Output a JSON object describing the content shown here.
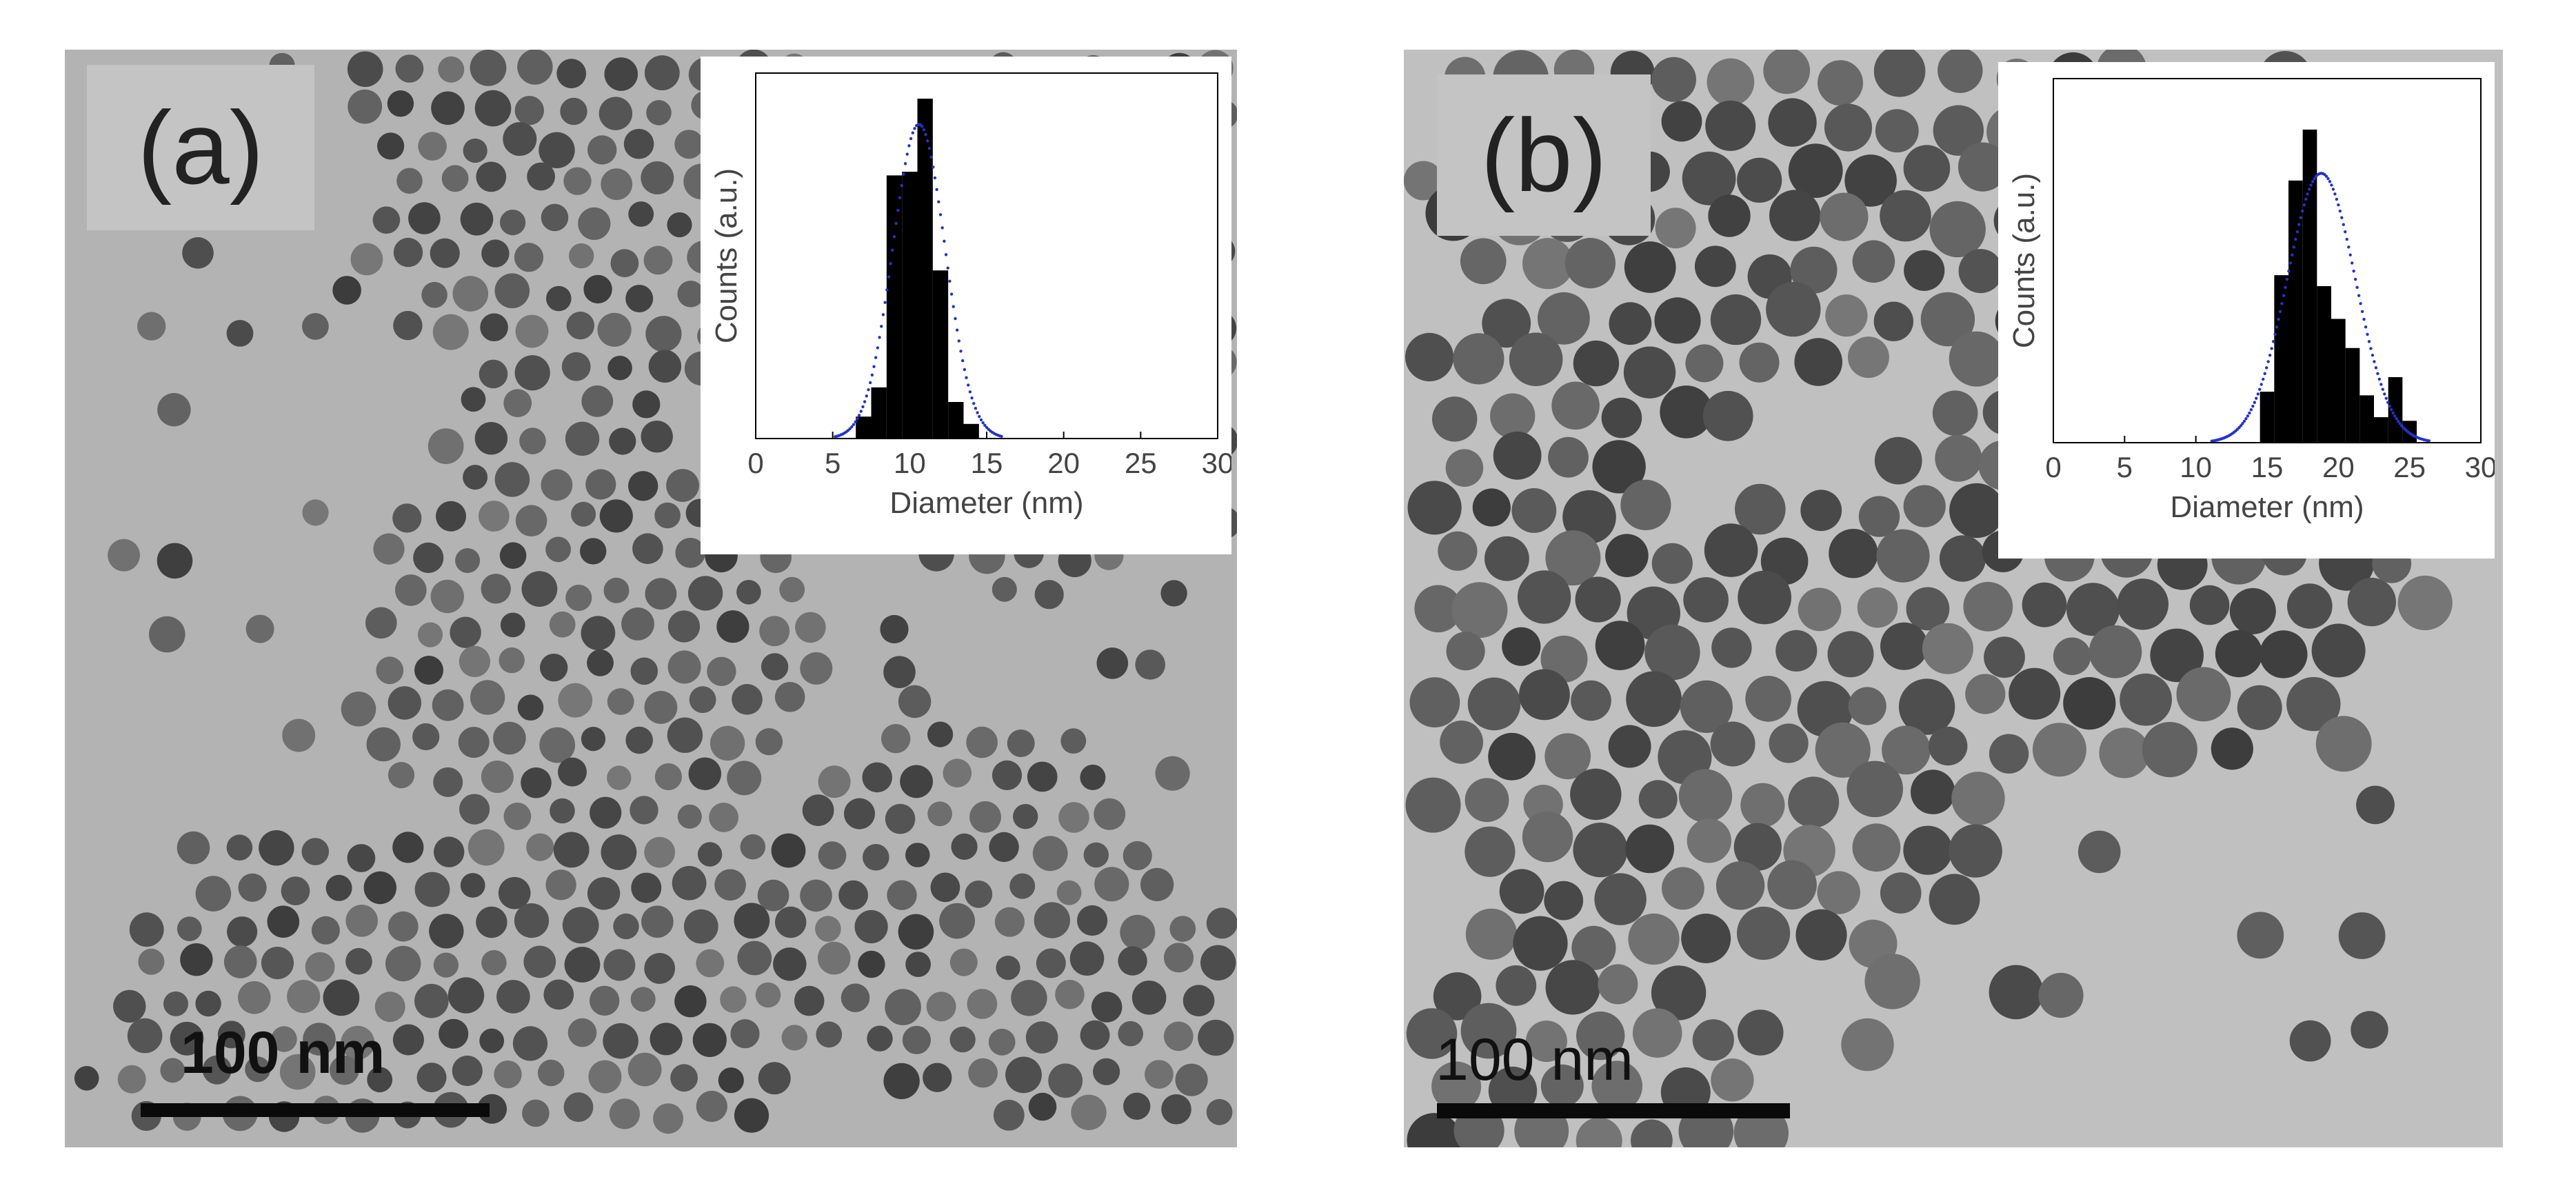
{
  "panels": [
    {
      "label": "(a)",
      "scale_bar_text": "100 nm",
      "particle_size_level": "small",
      "inset": {
        "xlabel": "Diameter (nm)",
        "ylabel": "Counts (a.u.)",
        "xlim": [
          0,
          30
        ],
        "xticks": [
          "0",
          "5",
          "10",
          "15",
          "20",
          "25",
          "30"
        ],
        "bins": [
          {
            "x": 7,
            "v": 0.06
          },
          {
            "x": 8,
            "v": 0.14
          },
          {
            "x": 9,
            "v": 0.72
          },
          {
            "x": 10,
            "v": 0.73
          },
          {
            "x": 11,
            "v": 0.93
          },
          {
            "x": 12,
            "v": 0.46
          },
          {
            "x": 13,
            "v": 0.1
          },
          {
            "x": 14,
            "v": 0.04
          }
        ],
        "fit": {
          "mean": 10.6,
          "sigma": 1.7,
          "peak": 0.86,
          "color": "#2233cc"
        }
      }
    },
    {
      "label": "(b)",
      "scale_bar_text": "100 nm",
      "particle_size_level": "large",
      "inset": {
        "xlabel": "Diameter (nm)",
        "ylabel": "Counts (a.u.)",
        "xlim": [
          0,
          30
        ],
        "xticks": [
          "0",
          "5",
          "10",
          "15",
          "20",
          "25",
          "30"
        ],
        "bins": [
          {
            "x": 15,
            "v": 0.14
          },
          {
            "x": 16,
            "v": 0.46
          },
          {
            "x": 17,
            "v": 0.72
          },
          {
            "x": 18,
            "v": 0.86
          },
          {
            "x": 19,
            "v": 0.43
          },
          {
            "x": 20,
            "v": 0.34
          },
          {
            "x": 21,
            "v": 0.26
          },
          {
            "x": 22,
            "v": 0.13
          },
          {
            "x": 23,
            "v": 0.07
          },
          {
            "x": 24,
            "v": 0.18
          },
          {
            "x": 25,
            "v": 0.06
          }
        ],
        "fit": {
          "mean": 18.8,
          "sigma": 2.4,
          "peak": 0.74,
          "color": "#2233cc"
        }
      }
    }
  ],
  "colors": {
    "tem_background_a": "#b3b3b3",
    "tem_background_b": "#c0c0c0",
    "label_box": "#c4c4c4",
    "histogram_bar": "#000000",
    "fit_curve": "#2233cc"
  }
}
